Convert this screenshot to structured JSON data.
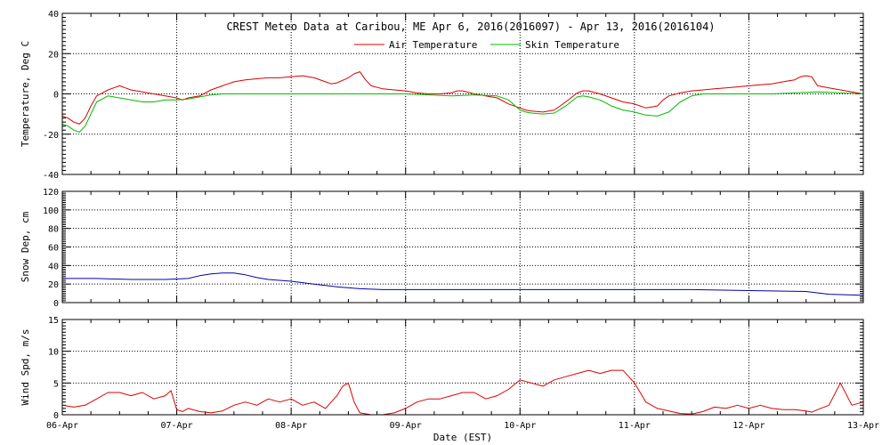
{
  "chart_data": {
    "title": "CREST Meteo Data at Caribou, ME   Apr  6, 2016(2016097) - Apr 13, 2016(2016104)",
    "xlabel": "Date (EST)",
    "x_ticks": [
      "06-Apr",
      "07-Apr",
      "08-Apr",
      "09-Apr",
      "10-Apr",
      "11-Apr",
      "12-Apr",
      "13-Apr"
    ],
    "xlim": [
      0,
      7
    ],
    "x_unit": "days since 06-Apr 00:00 EST",
    "panels": [
      {
        "type": "line",
        "ylabel": "Temperature, Deg C",
        "ylim": [
          -40,
          40
        ],
        "y_ticks": [
          -40,
          -20,
          0,
          20,
          40
        ],
        "grid": true,
        "legend": "top-center",
        "series": [
          {
            "name": "Air Temperature",
            "color": "#dd0000",
            "x": [
              0,
              0.05,
              0.1,
              0.15,
              0.2,
              0.25,
              0.3,
              0.4,
              0.5,
              0.55,
              0.6,
              0.7,
              0.8,
              0.9,
              1.0,
              1.05,
              1.1,
              1.2,
              1.3,
              1.4,
              1.5,
              1.6,
              1.7,
              1.8,
              1.9,
              2.0,
              2.1,
              2.15,
              2.2,
              2.3,
              2.35,
              2.4,
              2.5,
              2.55,
              2.6,
              2.65,
              2.7,
              2.8,
              2.9,
              3.0,
              3.1,
              3.2,
              3.3,
              3.4,
              3.45,
              3.5,
              3.6,
              3.7,
              3.8,
              3.9,
              4.0,
              4.05,
              4.1,
              4.2,
              4.3,
              4.4,
              4.5,
              4.55,
              4.6,
              4.7,
              4.8,
              4.9,
              5.0,
              5.05,
              5.1,
              5.2,
              5.25,
              5.3,
              5.4,
              5.5,
              5.6,
              5.7,
              5.8,
              5.9,
              6.0,
              6.1,
              6.2,
              6.3,
              6.4,
              6.45,
              6.5,
              6.55,
              6.6,
              6.7,
              6.8,
              6.9,
              7.0
            ],
            "y": [
              -11,
              -12,
              -14,
              -15,
              -12,
              -6,
              -1,
              2,
              4,
              3,
              2,
              1,
              0,
              -1,
              -2,
              -3,
              -2,
              -1,
              2,
              4,
              6,
              7,
              7.5,
              8,
              8,
              8.5,
              9,
              8.5,
              8,
              6,
              5,
              5.5,
              8,
              10,
              11,
              7,
              4,
              2.5,
              2,
              1.5,
              0.5,
              0,
              0,
              0.5,
              1.5,
              1.5,
              0,
              -1,
              -2,
              -5,
              -7,
              -8,
              -8.5,
              -9,
              -8,
              -4,
              0.5,
              1.5,
              1.5,
              0,
              -2,
              -4,
              -5,
              -6,
              -7,
              -6,
              -3,
              -1,
              0.5,
              1.5,
              2,
              2.5,
              3,
              3.5,
              4,
              4.5,
              5,
              6,
              7,
              8.5,
              9,
              8.5,
              4,
              3,
              2,
              1,
              0
            ]
          },
          {
            "name": "Skin Temperature",
            "color": "#00bb00",
            "x": [
              0,
              0.05,
              0.1,
              0.15,
              0.2,
              0.25,
              0.3,
              0.4,
              0.5,
              0.6,
              0.7,
              0.8,
              0.9,
              1.0,
              1.1,
              1.2,
              1.3,
              1.4,
              1.5,
              1.6,
              1.7,
              1.8,
              1.9,
              2.0,
              2.2,
              2.4,
              2.6,
              2.8,
              3.0,
              3.2,
              3.4,
              3.6,
              3.8,
              3.9,
              4.0,
              4.05,
              4.1,
              4.2,
              4.3,
              4.4,
              4.5,
              4.55,
              4.6,
              4.7,
              4.8,
              4.9,
              5.0,
              5.1,
              5.2,
              5.3,
              5.4,
              5.5,
              5.6,
              5.8,
              6.0,
              6.2,
              6.4,
              6.6,
              6.8,
              7.0
            ],
            "y": [
              -15,
              -16,
              -18,
              -19,
              -16,
              -10,
              -4,
              -1,
              -2,
              -3,
              -4,
              -4,
              -3,
              -3,
              -2.5,
              -1.5,
              -0.5,
              0,
              0,
              0,
              0,
              0,
              0,
              0,
              0,
              0,
              0,
              0,
              0,
              -0.5,
              -1,
              -0.5,
              -1,
              -3,
              -8,
              -9,
              -9.5,
              -10,
              -9.5,
              -6,
              -1.5,
              -1,
              -1.5,
              -3,
              -6,
              -8,
              -9,
              -10.5,
              -11,
              -9,
              -4,
              -1,
              0,
              0,
              0,
              0,
              0.5,
              1,
              0.5,
              0
            ]
          }
        ]
      },
      {
        "type": "line",
        "ylabel": "Snow Dep, cm",
        "ylim": [
          0,
          120
        ],
        "y_ticks": [
          0,
          20,
          40,
          60,
          80,
          100,
          120
        ],
        "grid": true,
        "series": [
          {
            "color": "#0000aa",
            "x": [
              0,
              0.3,
              0.6,
              0.9,
              1.1,
              1.2,
              1.3,
              1.4,
              1.5,
              1.6,
              1.7,
              1.8,
              2.0,
              2.2,
              2.4,
              2.6,
              2.8,
              3.0,
              3.5,
              4.0,
              4.5,
              5.0,
              5.5,
              6.0,
              6.5,
              6.7,
              7.0
            ],
            "y": [
              26,
              26,
              25,
              25,
              26,
              29,
              31,
              32,
              32,
              30,
              27,
              25,
              23,
              20,
              17,
              15,
              14,
              14,
              14,
              14,
              14,
              14,
              14,
              13,
              12,
              9,
              8
            ]
          }
        ]
      },
      {
        "type": "line",
        "ylabel": "Wind Spd, m/s",
        "ylim": [
          0,
          15
        ],
        "y_ticks": [
          0,
          5,
          10,
          15
        ],
        "grid": true,
        "series": [
          {
            "color": "#dd0000",
            "x": [
              0,
              0.1,
              0.2,
              0.3,
              0.4,
              0.5,
              0.6,
              0.7,
              0.8,
              0.9,
              0.95,
              1.0,
              1.05,
              1.1,
              1.2,
              1.3,
              1.4,
              1.5,
              1.6,
              1.7,
              1.8,
              1.9,
              2.0,
              2.1,
              2.2,
              2.3,
              2.4,
              2.45,
              2.5,
              2.55,
              2.6,
              2.7,
              2.8,
              2.9,
              3.0,
              3.1,
              3.2,
              3.3,
              3.4,
              3.5,
              3.6,
              3.7,
              3.8,
              3.9,
              4.0,
              4.1,
              4.2,
              4.3,
              4.4,
              4.5,
              4.6,
              4.7,
              4.8,
              4.9,
              5.0,
              5.05,
              5.1,
              5.2,
              5.3,
              5.4,
              5.5,
              5.6,
              5.7,
              5.8,
              5.9,
              6.0,
              6.1,
              6.2,
              6.3,
              6.4,
              6.5,
              6.55,
              6.6,
              6.7,
              6.8,
              6.9,
              7.0
            ],
            "y": [
              1.5,
              1.2,
              1.5,
              2.5,
              3.5,
              3.5,
              3.0,
              3.5,
              2.5,
              3.0,
              3.8,
              0.8,
              0.5,
              1.0,
              0.5,
              0.3,
              0.6,
              1.5,
              2.0,
              1.5,
              2.5,
              2.0,
              2.5,
              1.5,
              2.0,
              1.0,
              3.0,
              4.5,
              5.0,
              2.0,
              0.3,
              0.0,
              0.0,
              0.3,
              1.0,
              2.0,
              2.5,
              2.5,
              3.0,
              3.5,
              3.5,
              2.5,
              3.0,
              4.0,
              5.5,
              5.0,
              4.5,
              5.5,
              6.0,
              6.5,
              7.0,
              6.5,
              7.0,
              7.0,
              5.0,
              3.5,
              2.0,
              1.0,
              0.6,
              0.2,
              0.1,
              0.5,
              1.2,
              1.0,
              1.5,
              1.0,
              1.5,
              1.0,
              0.8,
              0.8,
              0.6,
              0.4,
              0.8,
              1.5,
              5.0,
              1.5,
              2.0
            ]
          }
        ]
      }
    ]
  }
}
